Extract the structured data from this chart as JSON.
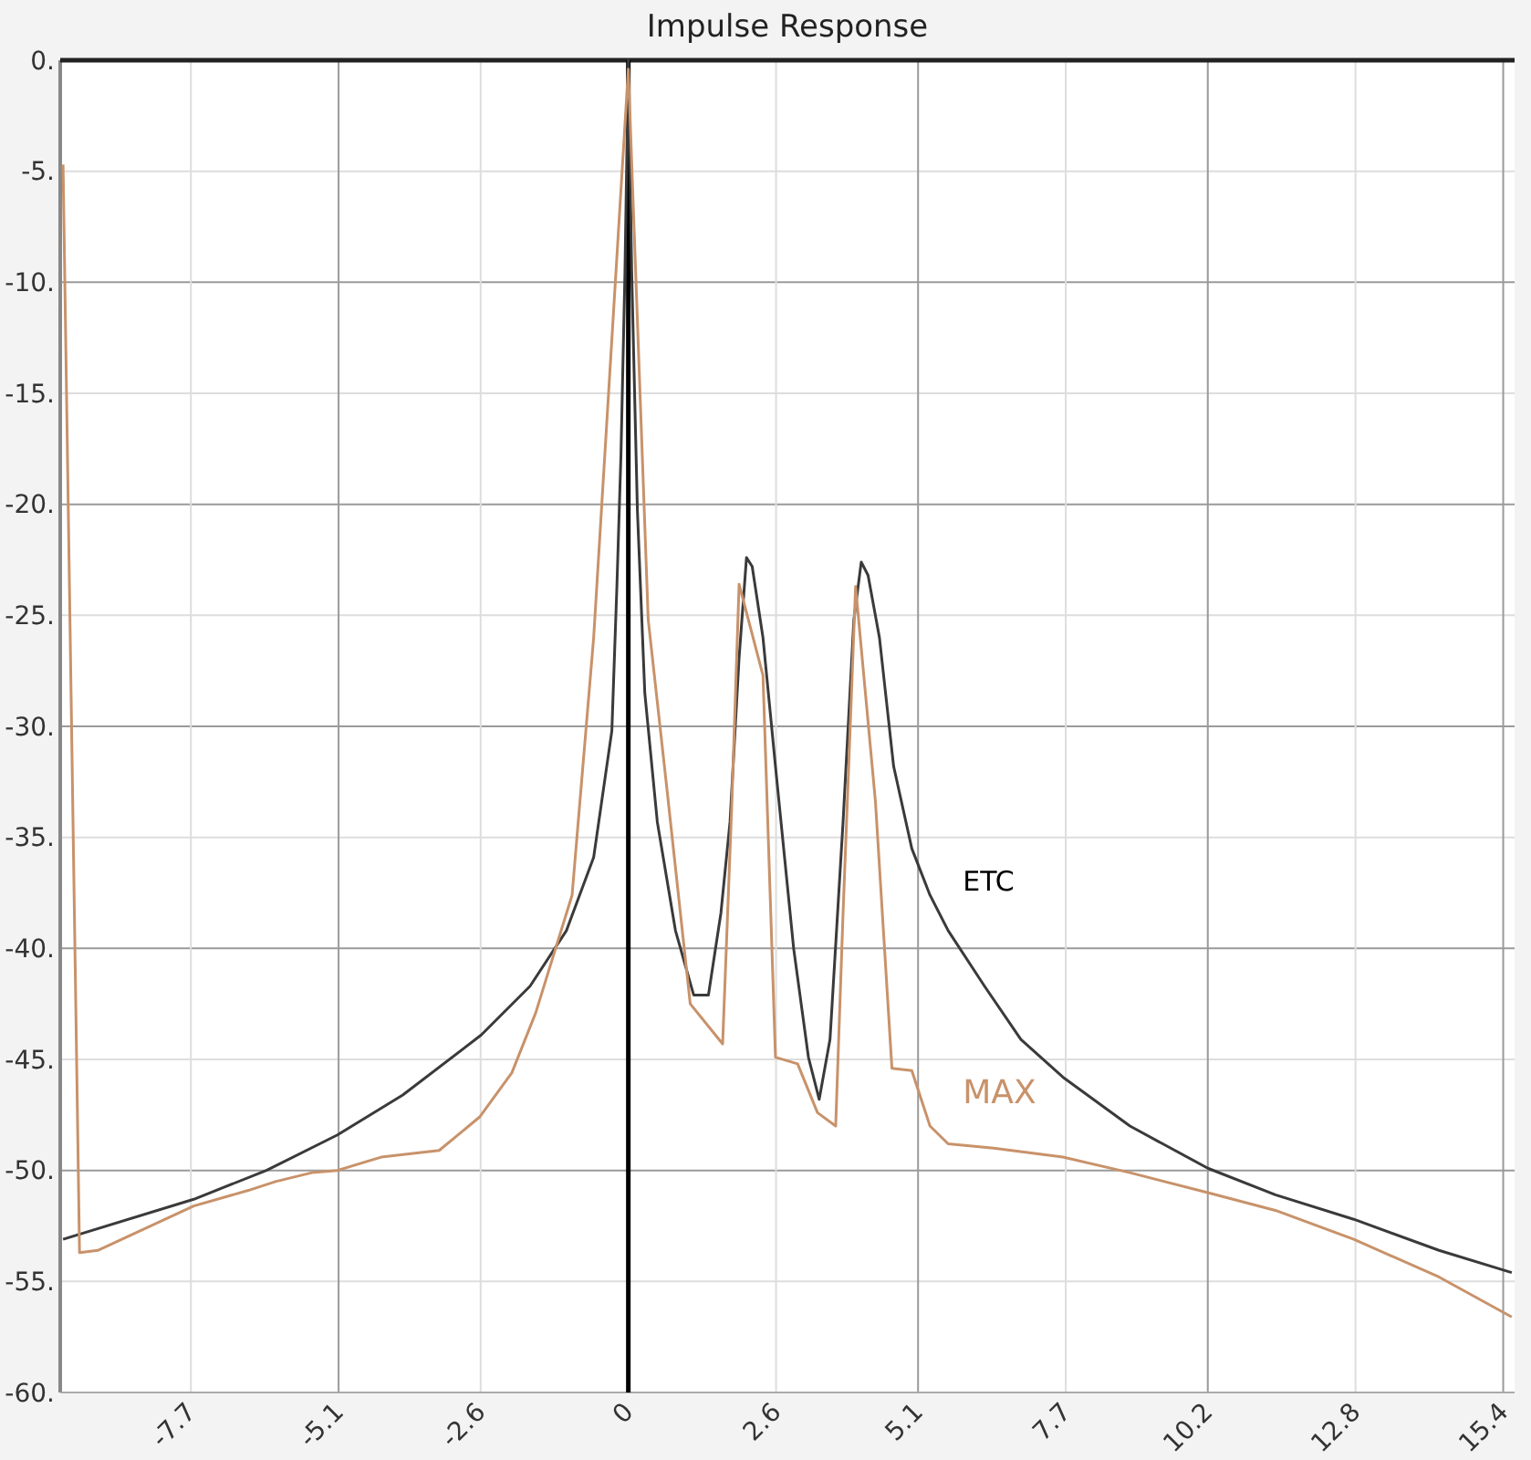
{
  "chart_data": {
    "type": "line",
    "title": "Impulse Response",
    "xlim": [
      -10,
      15.6
    ],
    "ylim": [
      -60,
      0
    ],
    "xticks": [
      -7.7,
      -5.1,
      -2.6,
      0,
      2.6,
      5.1,
      7.7,
      10.2,
      12.8,
      15.4
    ],
    "yticks": [
      {
        "value": 0,
        "label": "0."
      },
      {
        "value": -5,
        "label": "-5."
      },
      {
        "value": -10,
        "label": "-10."
      },
      {
        "value": -15,
        "label": "-15."
      },
      {
        "value": -20,
        "label": "-20."
      },
      {
        "value": -25,
        "label": "-25."
      },
      {
        "value": -30,
        "label": "-30."
      },
      {
        "value": -35,
        "label": "-35."
      },
      {
        "value": -40,
        "label": "-40."
      },
      {
        "value": -45,
        "label": "-45."
      },
      {
        "value": -50,
        "label": "-50."
      },
      {
        "value": -55,
        "label": "-55."
      },
      {
        "value": -60,
        "label": "-60."
      }
    ],
    "grid": true,
    "ref_lines": [
      {
        "axis": "x",
        "value": 0,
        "color": "#000000"
      }
    ],
    "series": [
      {
        "name": "ETC",
        "color": "#3a3a3a",
        "x": [
          -9.95,
          -7.65,
          -6.37,
          -5.12,
          -3.97,
          -2.59,
          -1.73,
          -1.09,
          -0.61,
          -0.29,
          -0.2,
          -0.13,
          -0.06,
          0,
          0.06,
          0.16,
          0.29,
          0.51,
          0.83,
          1.15,
          1.41,
          1.63,
          1.79,
          1.95,
          2.08,
          2.18,
          2.37,
          2.59,
          2.91,
          3.17,
          3.36,
          3.55,
          3.78,
          3.97,
          4.1,
          4.22,
          4.42,
          4.67,
          4.99,
          5.31,
          5.63,
          6.27,
          6.91,
          7.65,
          8.83,
          10.2,
          11.39,
          12.77,
          14.27,
          15.55
        ],
        "values": [
          -53.1,
          -51.3,
          -50,
          -48.4,
          -46.6,
          -43.9,
          -41.7,
          -39.2,
          -35.9,
          -30.2,
          -23.6,
          -17.8,
          -9.6,
          0,
          -9.6,
          -20.3,
          -28.5,
          -34.3,
          -39.2,
          -42.1,
          -42.1,
          -38.4,
          -34.3,
          -26.9,
          -22.4,
          -22.8,
          -26,
          -31.8,
          -40,
          -44.9,
          -46.8,
          -44.1,
          -34.3,
          -25.2,
          -22.6,
          -23.2,
          -26,
          -31.8,
          -35.5,
          -37.6,
          -39.2,
          -41.7,
          -44.1,
          -45.8,
          -48,
          -49.9,
          -51.1,
          -52.2,
          -53.6,
          -54.6
        ]
      },
      {
        "name": "MAX",
        "color": "#c8926a",
        "x": [
          -9.95,
          -9.66,
          -9.34,
          -7.65,
          -6.69,
          -6.21,
          -5.57,
          -5.12,
          -4.35,
          -3.33,
          -2.62,
          -2.05,
          -1.63,
          -0.99,
          -0.61,
          0,
          0.35,
          0.67,
          1.09,
          1.66,
          1.82,
          1.95,
          2.37,
          2.59,
          2.98,
          3.33,
          3.65,
          3.78,
          4,
          4.35,
          4.64,
          4.99,
          5.31,
          5.63,
          6.43,
          7.65,
          8.83,
          10.2,
          11.39,
          12.77,
          14.27,
          15.55
        ],
        "values": [
          -4.7,
          -53.7,
          -53.6,
          -51.6,
          -50.9,
          -50.5,
          -50.1,
          -50,
          -49.4,
          -49.1,
          -47.6,
          -45.6,
          -42.9,
          -37.6,
          -26,
          -0.4,
          -25.2,
          -32.6,
          -42.5,
          -44.3,
          -33.6,
          -23.6,
          -27.7,
          -44.9,
          -45.2,
          -47.4,
          -48,
          -38.4,
          -23.7,
          -33.4,
          -45.4,
          -45.5,
          -48,
          -48.8,
          -49,
          -49.4,
          -50.1,
          -51,
          -51.8,
          -53.1,
          -54.8,
          -56.6
        ]
      }
    ]
  }
}
